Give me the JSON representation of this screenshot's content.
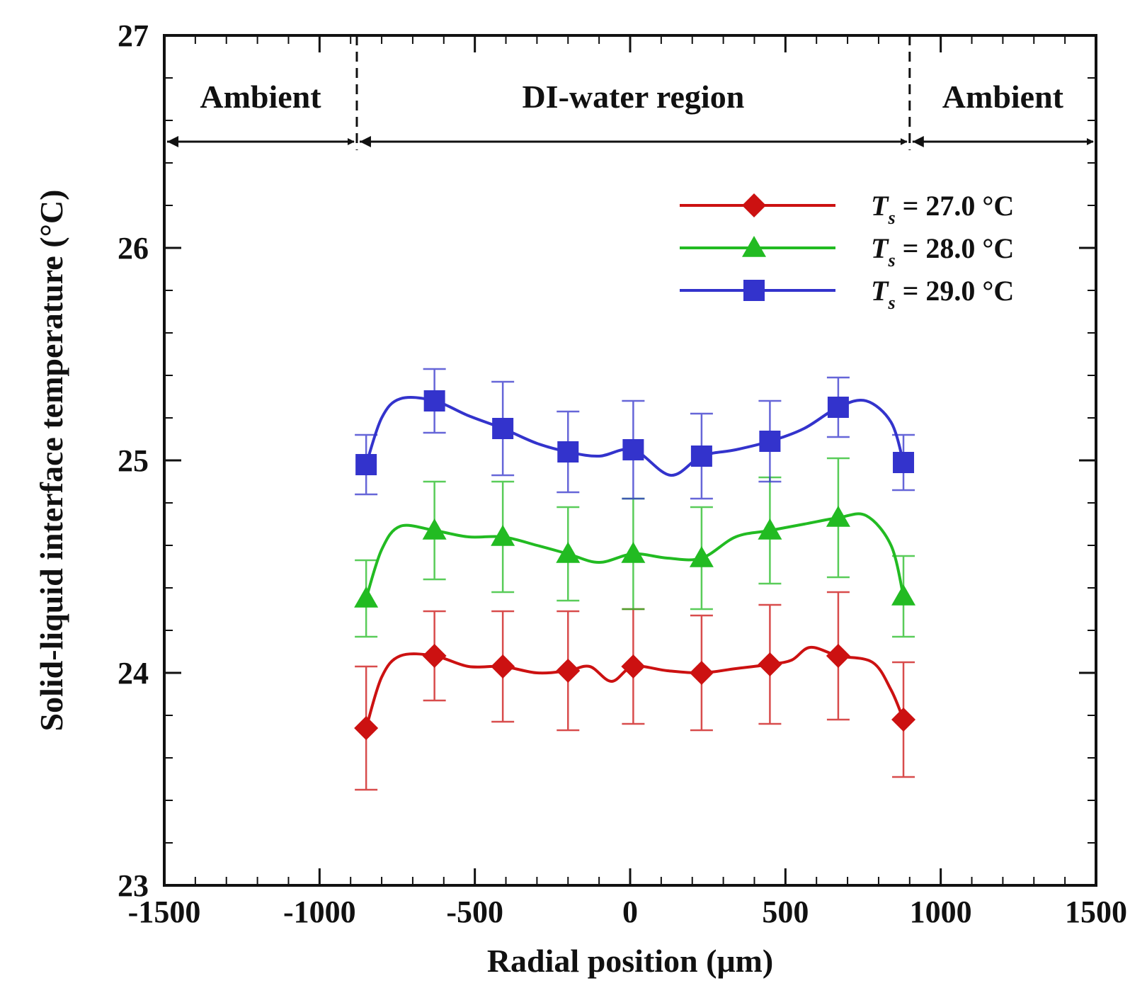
{
  "chart_data": {
    "type": "line",
    "xlabel": "Radial position (μm)",
    "ylabel": "Solid-liquid interface temperature (°C)",
    "xlim": [
      -1500,
      1500
    ],
    "ylim": [
      23,
      27
    ],
    "xticks": [
      -1500,
      -1000,
      -500,
      0,
      500,
      1000,
      1500
    ],
    "yticks": [
      23,
      24,
      25,
      26,
      27
    ],
    "x_minor_step": 100,
    "y_minor_step": 0.2,
    "regions": [
      {
        "label": "Ambient",
        "from": -1500,
        "to": -880
      },
      {
        "label": "DI-water region",
        "from": -880,
        "to": 900
      },
      {
        "label": "Ambient",
        "from": 900,
        "to": 1500
      }
    ],
    "region_arrow_y": 26.5,
    "legend_position": "top-right",
    "series": [
      {
        "name": "Ts = 27.0 °C",
        "legend_symbol": "T",
        "legend_subscript": "s",
        "legend_rest": " = 27.0 °C",
        "color": "#cc1111",
        "marker": "diamond",
        "x": [
          -850,
          -630,
          -410,
          -200,
          10,
          230,
          450,
          670,
          880
        ],
        "y": [
          23.74,
          24.08,
          24.03,
          24.01,
          24.03,
          24.0,
          24.04,
          24.08,
          23.78
        ],
        "err": [
          0.29,
          0.21,
          0.26,
          0.28,
          0.27,
          0.27,
          0.28,
          0.3,
          0.27
        ],
        "curve": [
          [
            -850,
            23.74
          ],
          [
            -800,
            23.98
          ],
          [
            -740,
            24.08
          ],
          [
            -630,
            24.08
          ],
          [
            -520,
            24.03
          ],
          [
            -410,
            24.03
          ],
          [
            -300,
            24.0
          ],
          [
            -200,
            24.01
          ],
          [
            -130,
            24.03
          ],
          [
            -60,
            23.96
          ],
          [
            10,
            24.03
          ],
          [
            120,
            24.01
          ],
          [
            230,
            24.0
          ],
          [
            340,
            24.02
          ],
          [
            450,
            24.04
          ],
          [
            520,
            24.06
          ],
          [
            580,
            24.12
          ],
          [
            670,
            24.08
          ],
          [
            780,
            24.05
          ],
          [
            840,
            23.92
          ],
          [
            880,
            23.78
          ]
        ]
      },
      {
        "name": "Ts = 28.0 °C",
        "legend_symbol": "T",
        "legend_subscript": "s",
        "legend_rest": " = 28.0 °C",
        "color": "#22bb22",
        "marker": "triangle",
        "x": [
          -850,
          -630,
          -410,
          -200,
          10,
          230,
          450,
          670,
          880
        ],
        "y": [
          24.35,
          24.67,
          24.64,
          24.56,
          24.56,
          24.54,
          24.67,
          24.73,
          24.36
        ],
        "err": [
          0.18,
          0.23,
          0.26,
          0.22,
          0.26,
          0.24,
          0.25,
          0.28,
          0.19
        ],
        "curve": [
          [
            -850,
            24.35
          ],
          [
            -800,
            24.58
          ],
          [
            -740,
            24.69
          ],
          [
            -630,
            24.67
          ],
          [
            -520,
            24.64
          ],
          [
            -410,
            24.64
          ],
          [
            -300,
            24.6
          ],
          [
            -200,
            24.56
          ],
          [
            -100,
            24.52
          ],
          [
            10,
            24.56
          ],
          [
            120,
            24.54
          ],
          [
            230,
            24.54
          ],
          [
            340,
            24.64
          ],
          [
            450,
            24.67
          ],
          [
            560,
            24.7
          ],
          [
            670,
            24.73
          ],
          [
            760,
            24.74
          ],
          [
            840,
            24.6
          ],
          [
            880,
            24.36
          ]
        ]
      },
      {
        "name": "Ts = 29.0 °C",
        "legend_symbol": "T",
        "legend_subscript": "s",
        "legend_rest": " = 29.0 °C",
        "color": "#3333cc",
        "marker": "square",
        "x": [
          -850,
          -630,
          -410,
          -200,
          10,
          230,
          450,
          670,
          880
        ],
        "y": [
          24.98,
          25.28,
          25.15,
          25.04,
          25.05,
          25.02,
          25.09,
          25.25,
          24.99
        ],
        "err": [
          0.14,
          0.15,
          0.22,
          0.19,
          0.23,
          0.2,
          0.19,
          0.14,
          0.13
        ],
        "curve": [
          [
            -850,
            24.98
          ],
          [
            -800,
            25.2
          ],
          [
            -740,
            25.29
          ],
          [
            -630,
            25.28
          ],
          [
            -520,
            25.21
          ],
          [
            -410,
            25.15
          ],
          [
            -300,
            25.08
          ],
          [
            -200,
            25.04
          ],
          [
            -100,
            25.02
          ],
          [
            10,
            25.05
          ],
          [
            130,
            24.93
          ],
          [
            230,
            25.02
          ],
          [
            340,
            25.05
          ],
          [
            450,
            25.09
          ],
          [
            560,
            25.15
          ],
          [
            670,
            25.25
          ],
          [
            760,
            25.28
          ],
          [
            840,
            25.18
          ],
          [
            880,
            24.99
          ]
        ]
      }
    ]
  }
}
